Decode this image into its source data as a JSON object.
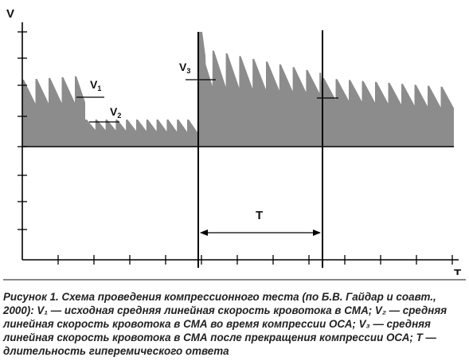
{
  "axis": {
    "y_label": "V",
    "x_label": "T"
  },
  "markers": {
    "v1": "V",
    "v1_sub": "1",
    "v2": "V",
    "v2_sub": "2",
    "v3": "V",
    "v3_sub": "3",
    "duration": "T"
  },
  "caption": {
    "text": "Рисунок 1. Схема проведения компрессионного теста (по Б.В. Гайдар и соавт., 2000): V₁ — исходная средняя линейная скорость кровотока в СМА; V₂ — средняя линейная скорость кровотока в СМА во время компрессии ОСА; V₃ — средняя линейная скорость кровотока в СМА после прекращения компрессии ОСА; T — длительность гиперемического ответа"
  },
  "colors": {
    "signal": "#8c8c8c",
    "lines": "#000000"
  }
}
